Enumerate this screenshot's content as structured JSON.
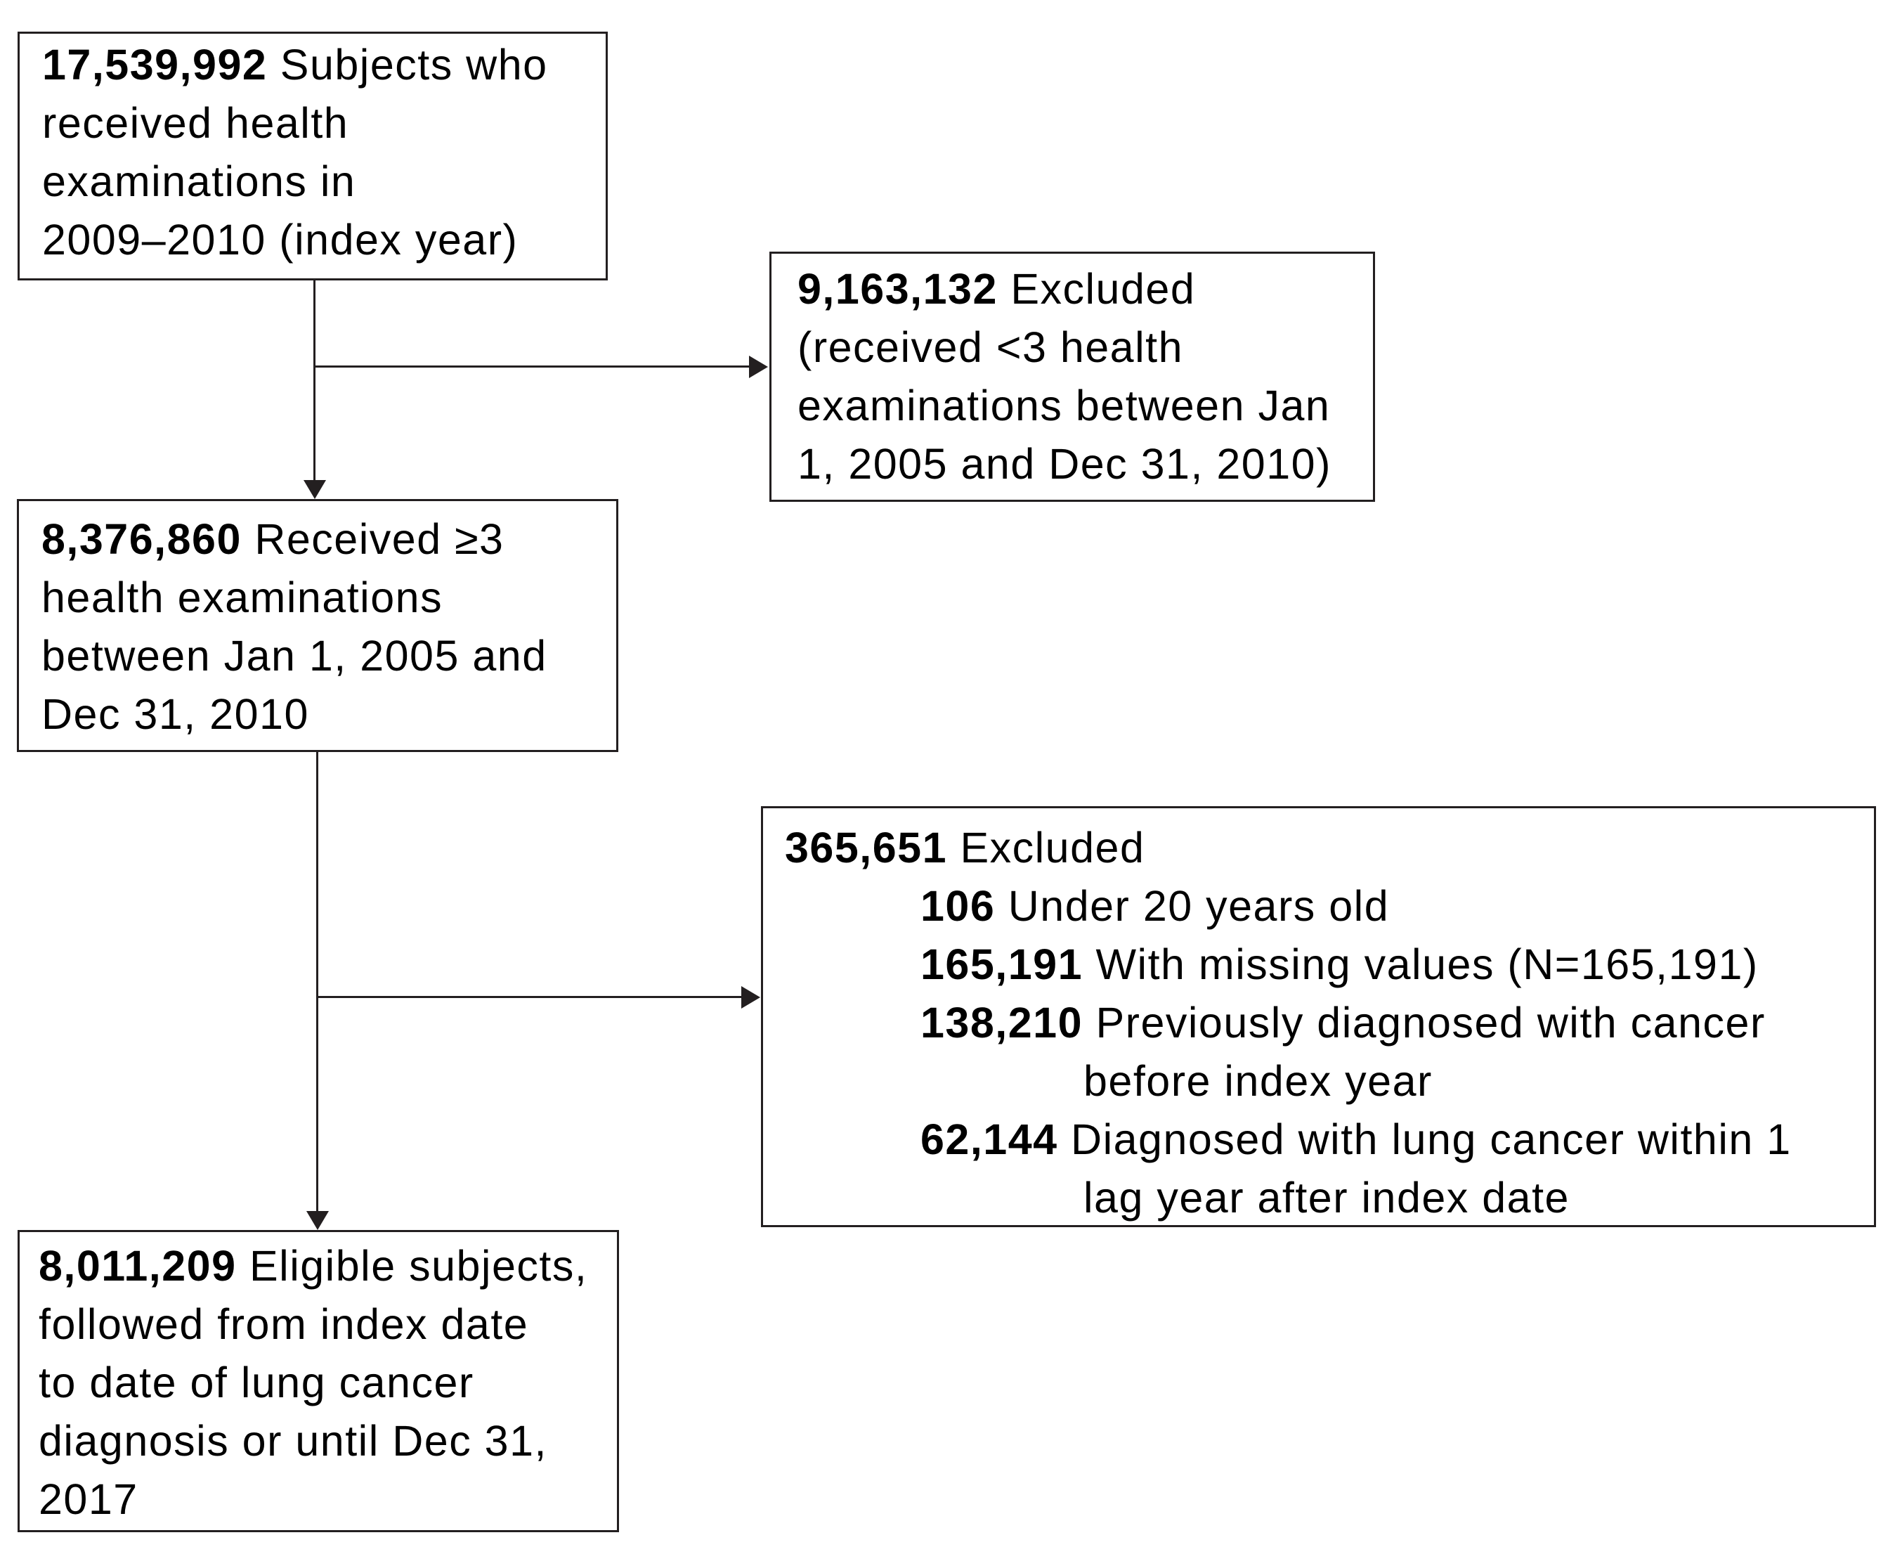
{
  "diagram": {
    "background": "#ffffff",
    "line_color": "#231f20",
    "text_color": "#000000",
    "boxes": {
      "initial": {
        "lines": [
          {
            "num": "17,539,992",
            "text": " Subjects who"
          },
          {
            "num": "",
            "text": "received health"
          },
          {
            "num": "",
            "text": "examinations in"
          },
          {
            "num": "",
            "text": "2009–2010 (index year)"
          }
        ]
      },
      "excluded1": {
        "lines": [
          {
            "num": "9,163,132",
            "text": " Excluded"
          },
          {
            "num": "",
            "text": "(received <3 health"
          },
          {
            "num": "",
            "text": "examinations between Jan"
          },
          {
            "num": "",
            "text": "1, 2005 and Dec 31, 2010)"
          }
        ]
      },
      "mid": {
        "lines": [
          {
            "num": "8,376,860",
            "text": " Received ≥3"
          },
          {
            "num": "",
            "text": "health examinations"
          },
          {
            "num": "",
            "text": "between Jan 1, 2005 and"
          },
          {
            "num": "",
            "text": "Dec 31, 2010"
          }
        ]
      },
      "excluded2": {
        "lines": [
          {
            "num": "365,651",
            "text": " Excluded"
          },
          {
            "num": "106",
            "text": " Under 20 years old"
          },
          {
            "num": "165,191",
            "text": " With missing values (N=165,191)"
          },
          {
            "num": "138,210",
            "text": " Previously diagnosed with cancer"
          },
          {
            "num": "",
            "text": "before index year"
          },
          {
            "num": "62,144",
            "text": " Diagnosed with lung cancer within 1"
          },
          {
            "num": "",
            "text": "lag year after index date"
          }
        ]
      },
      "eligible": {
        "lines": [
          {
            "num": "8,011,209",
            "text": " Eligible subjects,"
          },
          {
            "num": "",
            "text": "followed from index date"
          },
          {
            "num": "",
            "text": "to date of lung cancer"
          },
          {
            "num": "",
            "text": "diagnosis or until Dec 31,"
          },
          {
            "num": "",
            "text": "2017"
          }
        ]
      }
    }
  }
}
